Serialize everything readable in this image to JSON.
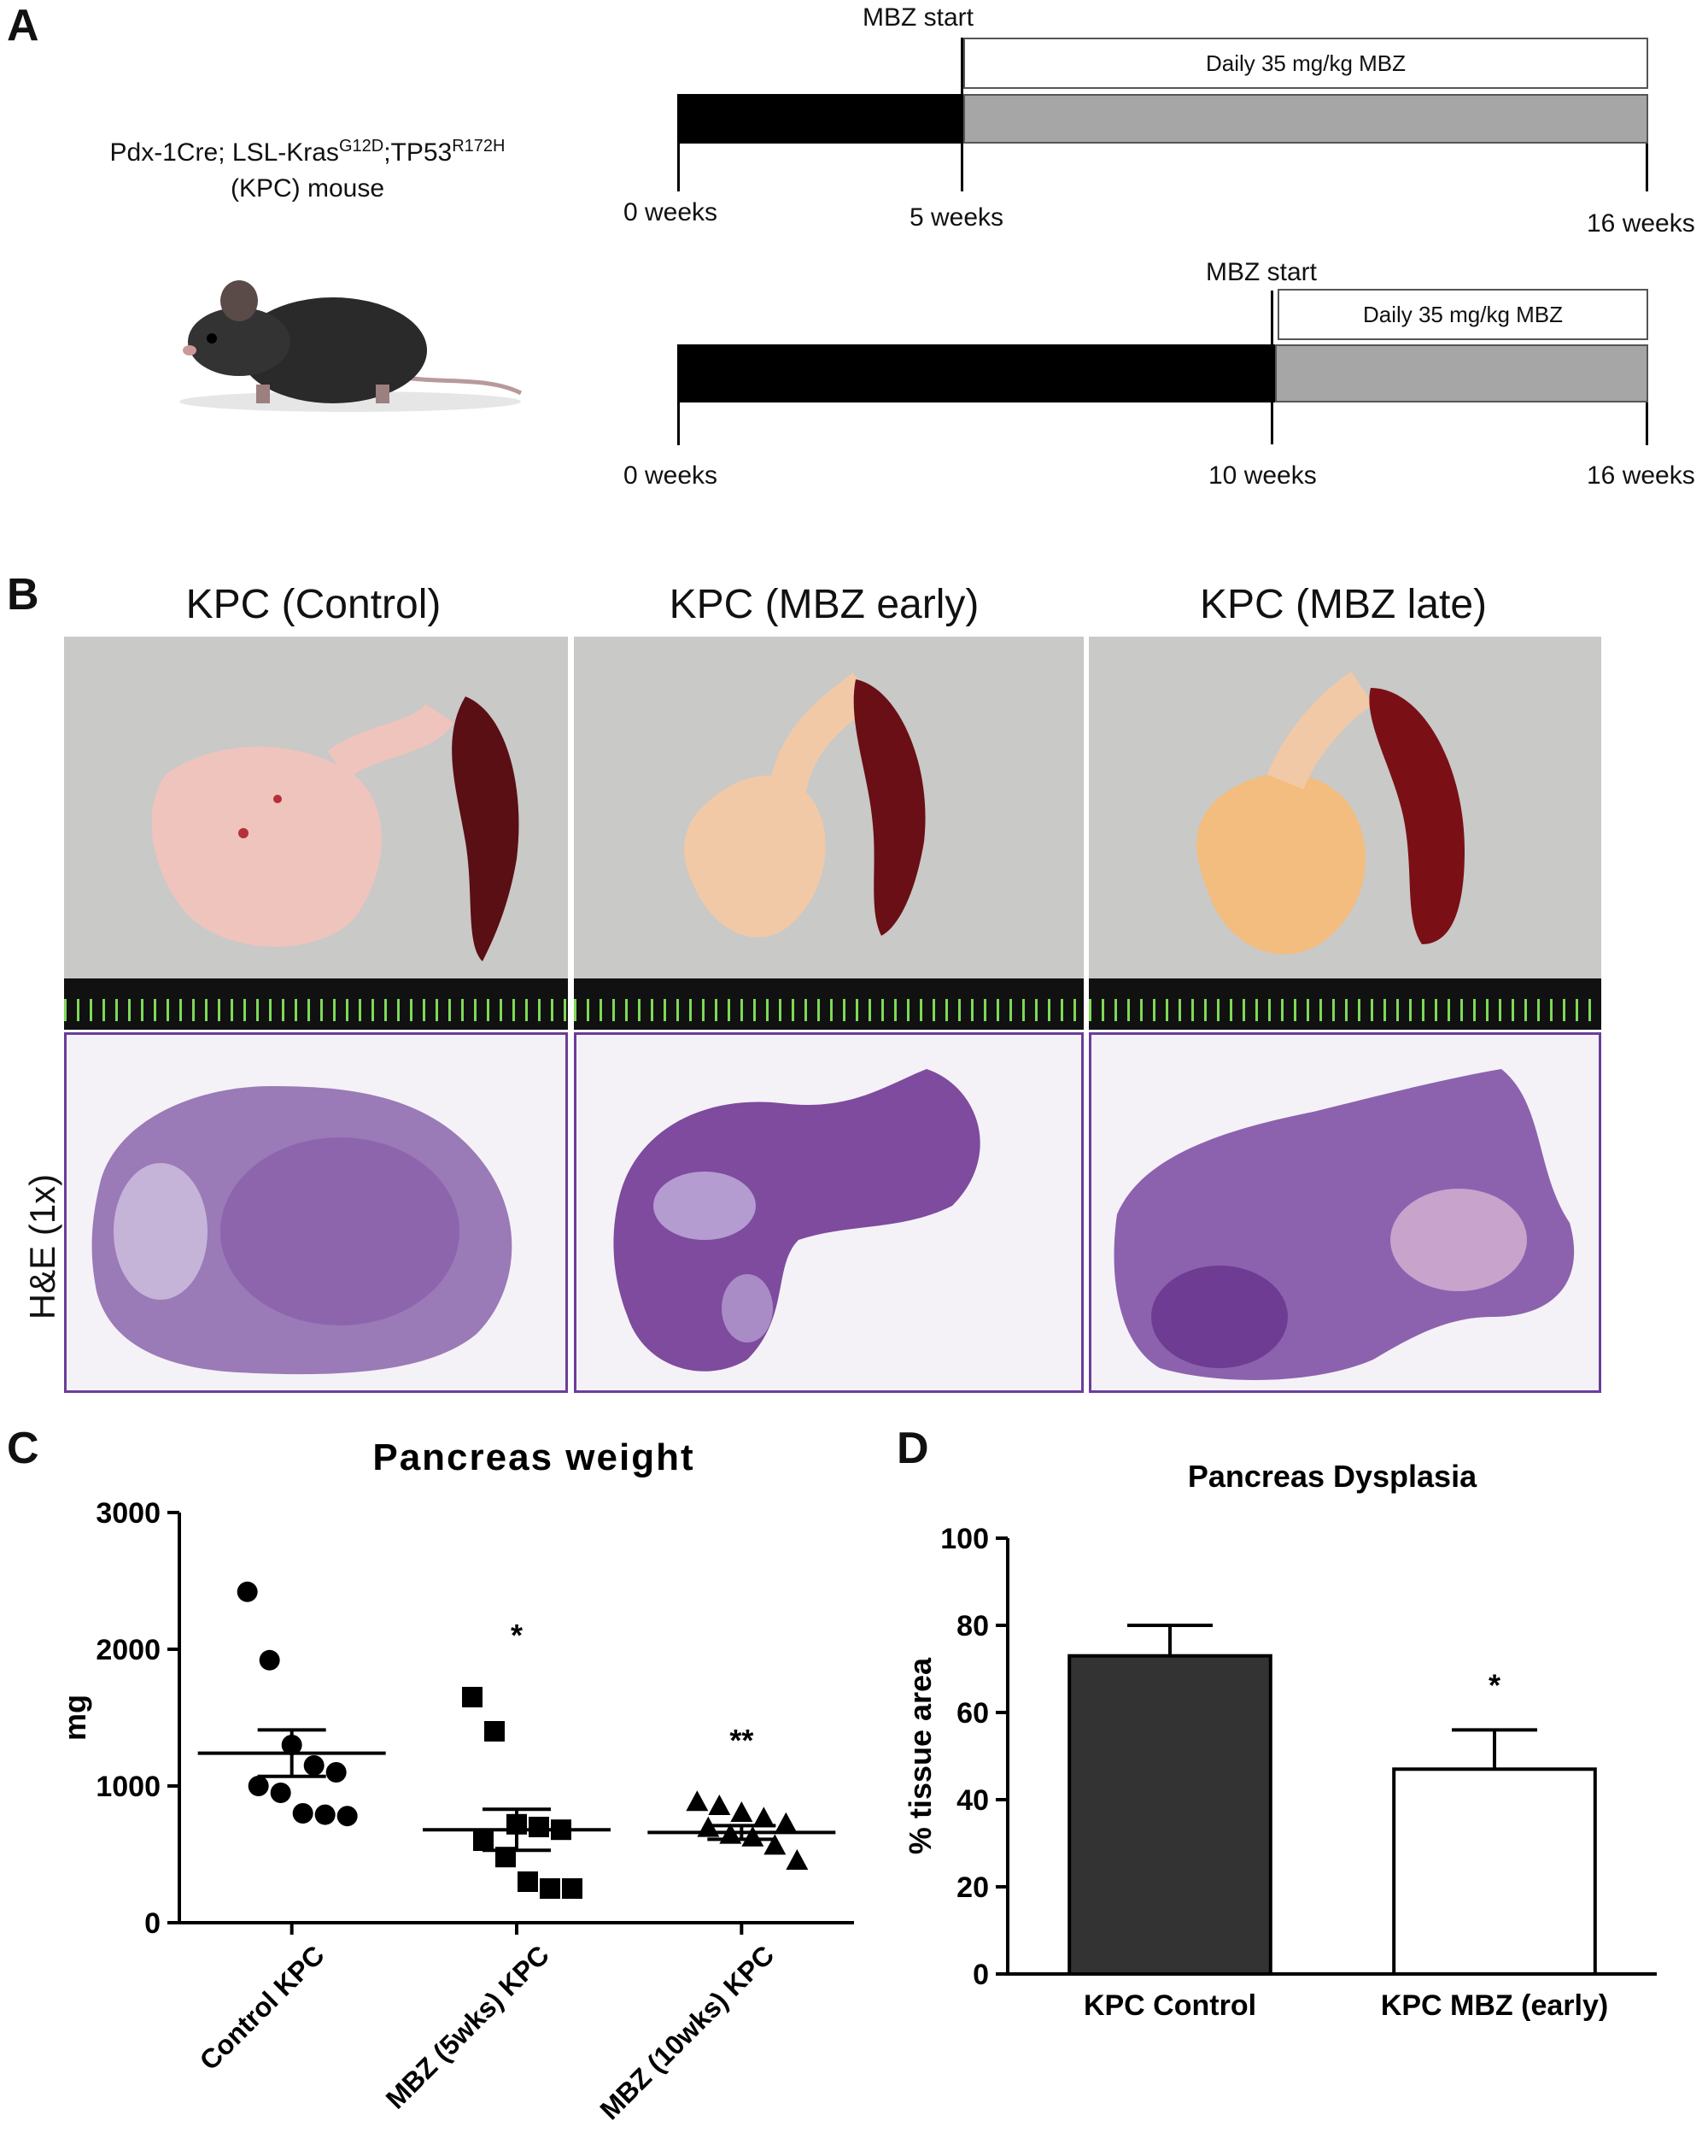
{
  "panels": {
    "a": "A",
    "b": "B",
    "c": "C",
    "d": "D"
  },
  "mouse": {
    "genotype_prefix": "Pdx-1Cre; LSL-Kras",
    "genotype_sup1": "G12D",
    "genotype_mid": ";TP53",
    "genotype_sup2": "R172H",
    "label": "(KPC) mouse"
  },
  "timeline1": {
    "start_label": "MBZ start",
    "treatment": "Daily 35 mg/kg MBZ",
    "t0": "0 weeks",
    "t_start": "5 weeks",
    "t_end": "16 weeks"
  },
  "timeline2": {
    "start_label": "MBZ start",
    "treatment": "Daily 35 mg/kg MBZ",
    "t0": "0 weeks",
    "t_start": "10 weeks",
    "t_end": "16 weeks"
  },
  "photos": {
    "titles": [
      "KPC (Control)",
      "KPC (MBZ early)",
      "KPC (MBZ late)"
    ],
    "he_label": "H&E (1x)"
  },
  "chart_data": [
    {
      "type": "scatter",
      "title": "Pancreas weight",
      "ylabel": "mg",
      "xlabel": "",
      "ylim": [
        0,
        3000
      ],
      "yticks": [
        0,
        1000,
        2000,
        3000
      ],
      "categories": [
        "Control KPC",
        "MBZ (5wks) KPC",
        "MBZ (10wks) KPC"
      ],
      "markers": [
        "circle",
        "square",
        "triangle"
      ],
      "significance": [
        "",
        "*",
        "**"
      ],
      "series": [
        {
          "values": [
            2420,
            1920,
            1300,
            1150,
            1100,
            1000,
            950,
            800,
            790,
            780
          ],
          "mean": 1240,
          "sem": 170
        },
        {
          "values": [
            1650,
            1400,
            720,
            700,
            680,
            600,
            480,
            300,
            250,
            250
          ],
          "mean": 680,
          "sem": 150
        },
        {
          "values": [
            880,
            850,
            800,
            760,
            720,
            690,
            640,
            620,
            560,
            450
          ],
          "mean": 660,
          "sem": 50
        }
      ]
    },
    {
      "type": "bar",
      "title": "Pancreas Dysplasia",
      "ylabel": "% tissue area",
      "xlabel": "",
      "ylim": [
        0,
        100
      ],
      "yticks": [
        0,
        20,
        40,
        60,
        80,
        100
      ],
      "categories": [
        "KPC Control",
        "KPC MBZ (early)"
      ],
      "values": [
        73,
        47
      ],
      "errors": [
        7,
        9
      ],
      "significance": [
        "",
        "*"
      ],
      "colors": [
        "#333333",
        "#ffffff"
      ]
    }
  ]
}
